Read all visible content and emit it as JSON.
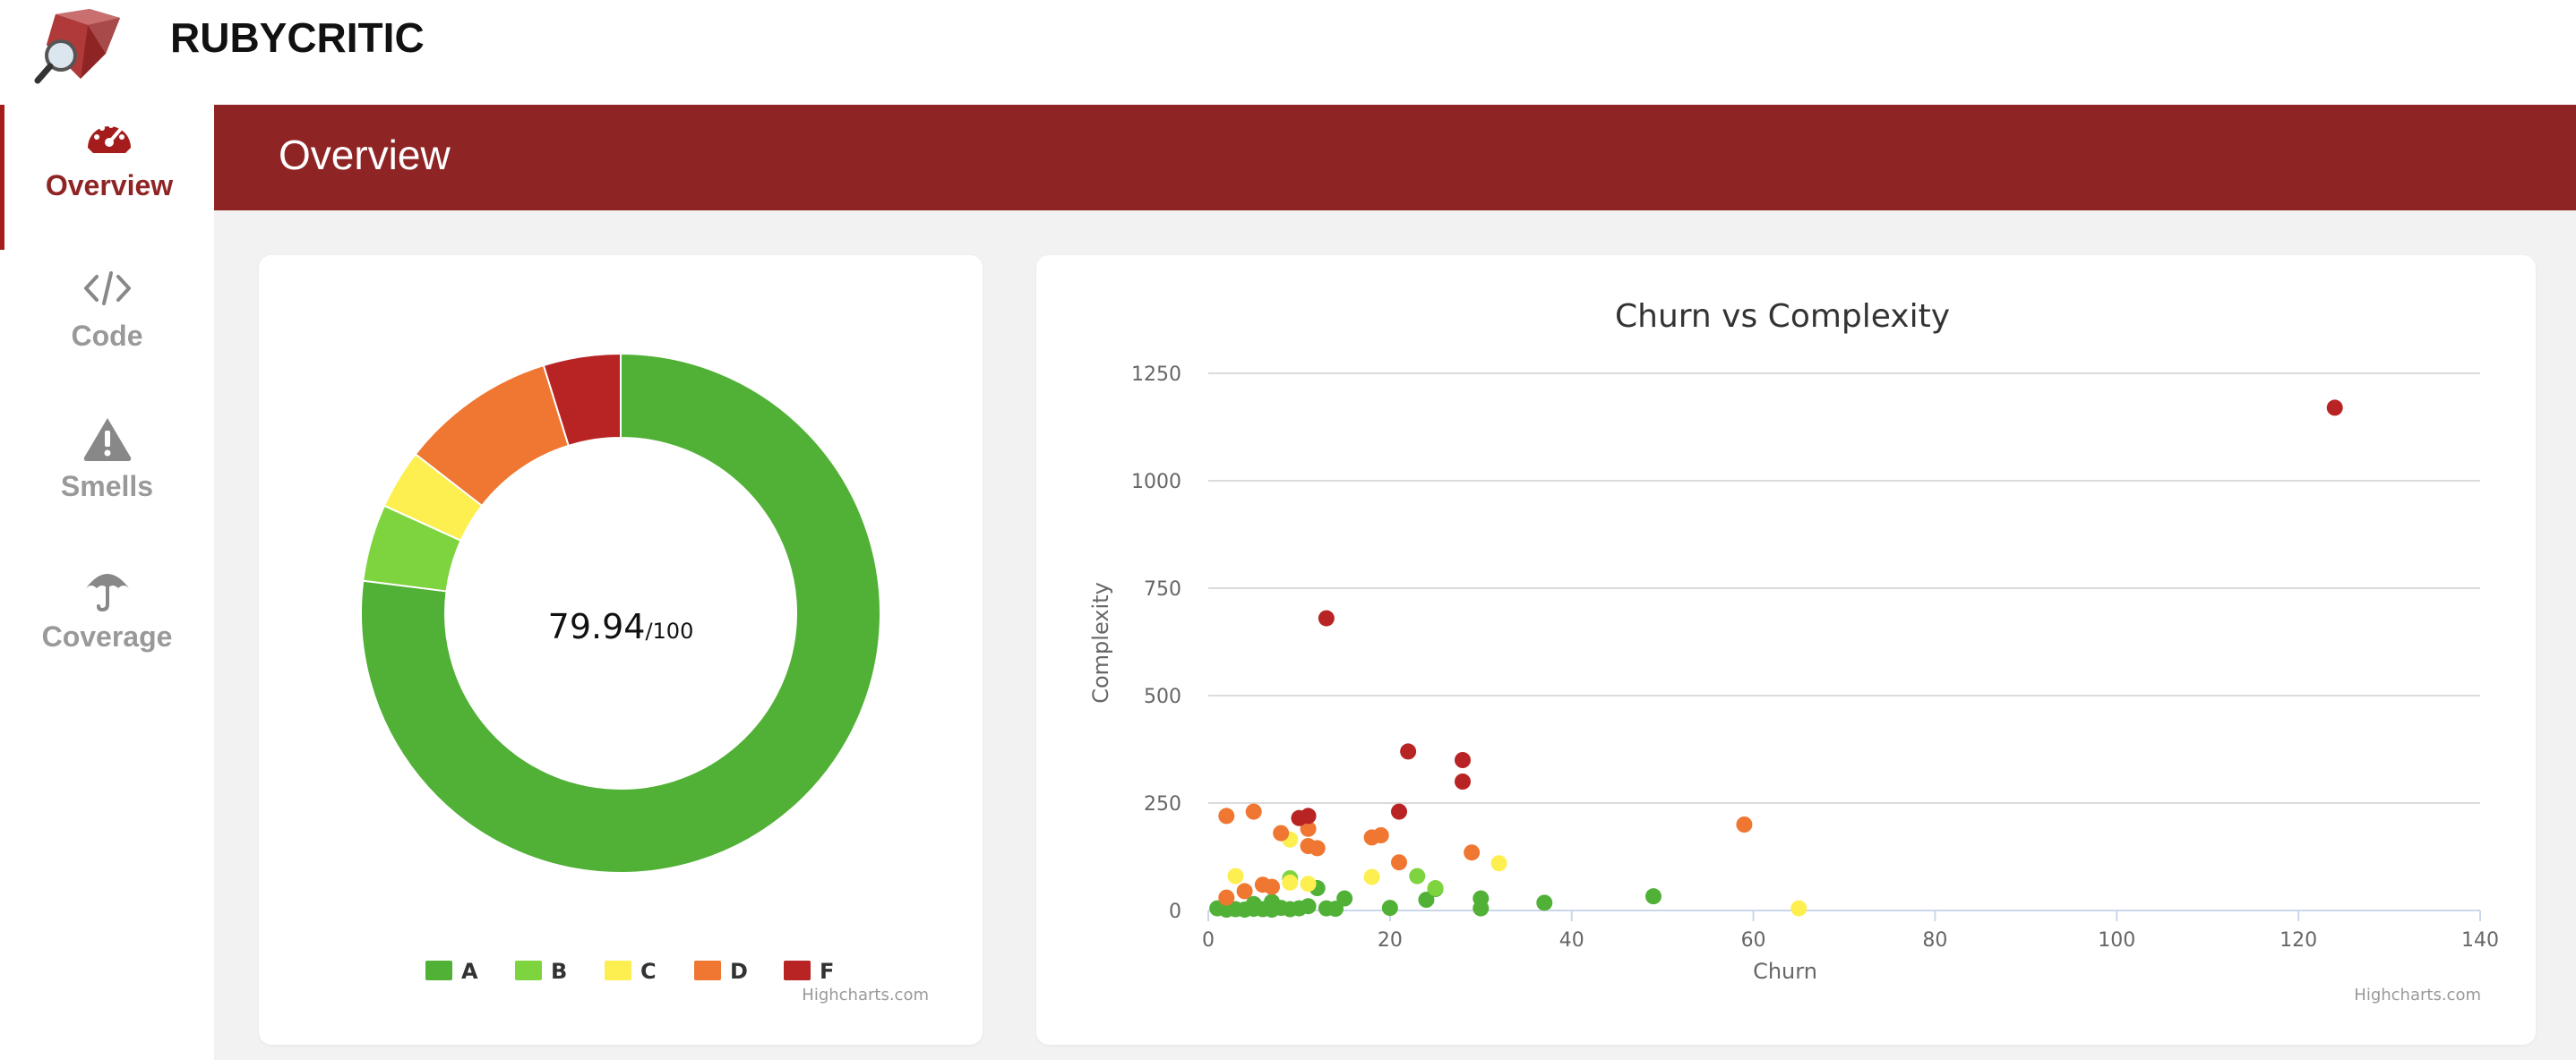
{
  "app": {
    "name": "RUBYCRITIC"
  },
  "sidebar": {
    "items": [
      {
        "label": "Overview",
        "icon": "speedometer-icon",
        "active": true
      },
      {
        "label": "Code",
        "icon": "code-icon",
        "active": false
      },
      {
        "label": "Smells",
        "icon": "warning-icon",
        "active": false
      },
      {
        "label": "Coverage",
        "icon": "umbrella-icon",
        "active": false
      }
    ]
  },
  "page": {
    "title": "Overview"
  },
  "colors": {
    "A": "#50b136",
    "B": "#7ed43f",
    "C": "#fcef4f",
    "D": "#ef7731",
    "F": "#b82424",
    "brand": "#8f2424"
  },
  "score": {
    "value": "79.94",
    "max": "/100"
  },
  "credits": "Highcharts.com",
  "chart_data": [
    {
      "type": "pie",
      "donut": true,
      "categories": [
        "A",
        "B",
        "C",
        "D",
        "F"
      ],
      "values": [
        77.0,
        4.8,
        3.7,
        9.7,
        4.8
      ],
      "legend": "bottom"
    },
    {
      "type": "scatter",
      "title": "Churn vs Complexity",
      "xlabel": "Churn",
      "ylabel": "Complexity",
      "xlim": [
        0,
        140
      ],
      "ylim": [
        0,
        1250
      ],
      "xticks": [
        0,
        20,
        40,
        60,
        80,
        100,
        120,
        140
      ],
      "yticks": [
        0,
        250,
        500,
        750,
        1000,
        1250
      ],
      "grid": true,
      "legend": "none",
      "series": [
        {
          "grade": "A",
          "points": [
            [
              1,
              5
            ],
            [
              2,
              2
            ],
            [
              3,
              3
            ],
            [
              4,
              2
            ],
            [
              5,
              4
            ],
            [
              6,
              3
            ],
            [
              7,
              2
            ],
            [
              8,
              6
            ],
            [
              9,
              3
            ],
            [
              10,
              5
            ],
            [
              11,
              10
            ],
            [
              12,
              52
            ],
            [
              13,
              5
            ],
            [
              14,
              4
            ],
            [
              15,
              28
            ],
            [
              20,
              6
            ],
            [
              24,
              25
            ],
            [
              25,
              50
            ],
            [
              30,
              28
            ],
            [
              30,
              5
            ],
            [
              37,
              18
            ],
            [
              49,
              33
            ],
            [
              2,
              10
            ],
            [
              5,
              15
            ],
            [
              7,
              20
            ]
          ]
        },
        {
          "grade": "B",
          "points": [
            [
              9,
              75
            ],
            [
              23,
              80
            ],
            [
              25,
              52
            ]
          ]
        },
        {
          "grade": "C",
          "points": [
            [
              3,
              80
            ],
            [
              9,
              165
            ],
            [
              9,
              65
            ],
            [
              11,
              62
            ],
            [
              18,
              78
            ],
            [
              32,
              110
            ],
            [
              65,
              5
            ]
          ]
        },
        {
          "grade": "D",
          "points": [
            [
              2,
              220
            ],
            [
              5,
              230
            ],
            [
              8,
              180
            ],
            [
              11,
              190
            ],
            [
              11,
              150
            ],
            [
              12,
              145
            ],
            [
              18,
              170
            ],
            [
              19,
              175
            ],
            [
              21,
              112
            ],
            [
              29,
              135
            ],
            [
              59,
              200
            ],
            [
              2,
              30
            ],
            [
              4,
              45
            ],
            [
              6,
              60
            ],
            [
              7,
              55
            ]
          ]
        },
        {
          "grade": "F",
          "points": [
            [
              10,
              215
            ],
            [
              11,
              220
            ],
            [
              13,
              680
            ],
            [
              21,
              230
            ],
            [
              22,
              370
            ],
            [
              28,
              350
            ],
            [
              28,
              300
            ],
            [
              124,
              1170
            ]
          ]
        }
      ]
    }
  ]
}
